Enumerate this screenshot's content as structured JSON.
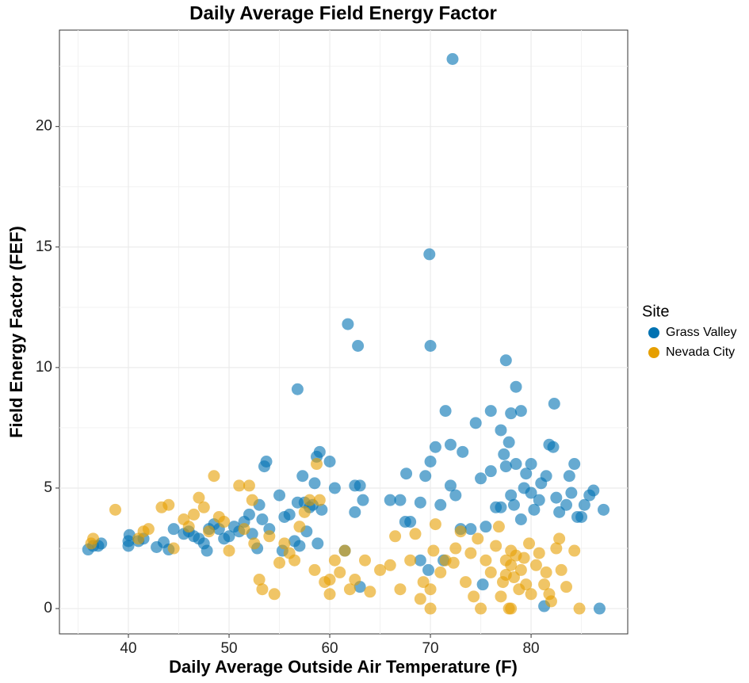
{
  "chart_data": {
    "type": "scatter",
    "title": "Daily Average Field Energy Factor",
    "x_label": "Daily Average Outside Air Temperature (F)",
    "y_label": "Field Energy Factor (FEF)",
    "legend_title": "Site",
    "legend_position": "right",
    "grid": true,
    "xlim": [
      33.15,
      89.6
    ],
    "ylim": [
      -1.05,
      24.0
    ],
    "xticks": [
      40,
      50,
      60,
      70,
      80
    ],
    "yticks": [
      0,
      5,
      10,
      15,
      20
    ],
    "xminorticks": [
      35,
      45,
      55,
      65,
      75,
      85
    ],
    "yminorticks": [
      2.5,
      7.5,
      12.5,
      17.5,
      22.5
    ],
    "series": [
      {
        "name": "Grass Valley",
        "color": "#0072B2",
        "x": [
          36,
          36.5,
          37,
          37.3,
          40,
          40,
          40.1,
          41,
          41.5,
          42.8,
          43.5,
          44,
          44.5,
          45.5,
          46,
          46.5,
          47,
          47.5,
          47.8,
          48,
          48.5,
          49,
          49.5,
          50,
          50.5,
          51,
          51.5,
          52,
          52.3,
          52.8,
          53,
          53.3,
          53.5,
          53.7,
          54,
          55,
          55.3,
          55.5,
          56,
          56.5,
          56.8,
          56.8,
          57,
          57.3,
          57.5,
          57.7,
          58,
          58.3,
          58.5,
          58.7,
          58.8,
          59,
          59.2,
          60,
          60.5,
          61.5,
          61.8,
          62.5,
          62.8,
          62.5,
          63,
          63,
          63.3,
          66,
          67,
          67.5,
          67.6,
          68,
          69,
          69,
          69.5,
          69.8,
          69.9,
          70,
          70,
          70.5,
          71,
          71.3,
          71.5,
          72,
          72,
          72.2,
          72.5,
          73,
          73.2,
          74,
          74.5,
          75,
          75.2,
          75.5,
          76,
          76,
          76.5,
          77,
          77,
          77.3,
          77.5,
          77.5,
          77.8,
          78,
          78,
          78.3,
          78.5,
          78.5,
          79,
          79,
          79.3,
          79.5,
          80,
          80,
          80.3,
          80.8,
          81,
          81.3,
          81.5,
          81.8,
          82.2,
          82.3,
          82.5,
          82.8,
          83.5,
          83.8,
          84,
          84.3,
          84.6,
          85,
          85.3,
          85.8,
          86.2,
          86.8,
          87.2
        ],
        "y": [
          2.45,
          2.6,
          2.6,
          2.7,
          2.6,
          2.8,
          3.05,
          2.8,
          2.9,
          2.55,
          2.75,
          2.45,
          3.3,
          3.1,
          3.2,
          3.0,
          2.9,
          2.7,
          2.4,
          3.3,
          3.5,
          3.3,
          2.9,
          3.0,
          3.4,
          3.2,
          3.6,
          3.9,
          3.1,
          2.5,
          4.3,
          3.7,
          5.9,
          6.1,
          3.3,
          4.7,
          2.4,
          3.8,
          3.9,
          2.8,
          4.4,
          9.1,
          2.6,
          5.5,
          4.4,
          3.2,
          4.2,
          4.3,
          5.2,
          6.3,
          2.7,
          6.5,
          4.1,
          6.1,
          5.0,
          2.4,
          11.8,
          5.1,
          10.9,
          4.0,
          0.9,
          5.1,
          4.5,
          4.5,
          4.5,
          3.6,
          5.6,
          3.6,
          4.4,
          2.0,
          5.5,
          1.6,
          14.7,
          10.9,
          6.1,
          6.7,
          4.3,
          2.0,
          8.2,
          6.8,
          5.1,
          22.8,
          4.7,
          3.3,
          6.5,
          3.3,
          7.7,
          5.4,
          1.0,
          3.4,
          5.7,
          8.2,
          4.2,
          4.2,
          7.4,
          6.4,
          10.3,
          5.9,
          6.9,
          4.7,
          8.1,
          4.3,
          9.2,
          6.0,
          3.7,
          8.2,
          5.0,
          5.6,
          6.0,
          4.8,
          4.1,
          4.5,
          5.2,
          0.1,
          5.5,
          6.8,
          6.7,
          8.5,
          4.6,
          4.0,
          4.3,
          5.5,
          4.8,
          6.0,
          3.8,
          3.8,
          4.3,
          4.7,
          4.9,
          0.0,
          4.1
        ]
      },
      {
        "name": "Nevada City",
        "color": "#E69F00",
        "x": [
          36.3,
          36.5,
          38.7,
          41,
          41.5,
          42,
          43.3,
          44,
          44.5,
          45.5,
          46,
          46.5,
          47,
          47.5,
          48,
          48.5,
          49,
          49.5,
          50,
          51,
          51.5,
          52,
          52.3,
          52.5,
          53,
          53.3,
          54,
          54.5,
          55,
          55.5,
          56,
          56.5,
          57,
          57.5,
          58,
          58.5,
          58.7,
          59,
          59.5,
          60,
          60,
          60.5,
          61,
          61.5,
          62,
          62.5,
          63.5,
          64,
          65,
          66,
          66.5,
          67,
          68,
          68.5,
          69,
          69.3,
          70,
          70,
          70.3,
          70.5,
          71,
          71.5,
          72.3,
          72.5,
          73,
          73.5,
          74,
          74.3,
          74.7,
          75,
          75.5,
          76,
          76.5,
          76.8,
          77,
          77.2,
          77.5,
          77.5,
          77.8,
          78,
          78,
          78,
          78.3,
          78.5,
          78.8,
          79,
          79.3,
          79.5,
          79.8,
          80,
          80.5,
          80.8,
          81.3,
          81.5,
          81.8,
          82,
          82.5,
          82.8,
          83,
          83.5,
          84.3,
          84.8
        ],
        "y": [
          2.7,
          2.9,
          4.1,
          2.9,
          3.2,
          3.3,
          4.2,
          4.3,
          2.5,
          3.7,
          3.4,
          3.9,
          4.6,
          4.2,
          3.2,
          5.5,
          3.8,
          3.6,
          2.4,
          5.1,
          3.3,
          5.1,
          4.5,
          2.7,
          1.2,
          0.8,
          3.0,
          0.6,
          1.9,
          2.7,
          2.3,
          2.0,
          3.4,
          4.0,
          4.5,
          1.6,
          6.0,
          4.5,
          1.1,
          0.6,
          1.2,
          2.0,
          1.5,
          2.4,
          0.8,
          1.2,
          2.0,
          0.7,
          1.6,
          1.8,
          3.0,
          0.8,
          2.0,
          3.1,
          0.4,
          1.1,
          0.0,
          0.8,
          2.4,
          3.5,
          1.5,
          2.0,
          1.9,
          2.5,
          3.2,
          1.1,
          2.3,
          0.5,
          2.9,
          0.0,
          2.0,
          1.5,
          2.6,
          3.4,
          0.5,
          1.1,
          2.0,
          1.4,
          0.0,
          0.0,
          2.4,
          1.8,
          1.3,
          2.2,
          0.8,
          1.6,
          2.1,
          1.0,
          2.7,
          0.6,
          1.8,
          2.3,
          1.0,
          1.5,
          0.6,
          0.3,
          2.5,
          2.9,
          1.6,
          0.9,
          2.4,
          0.0
        ]
      }
    ]
  }
}
